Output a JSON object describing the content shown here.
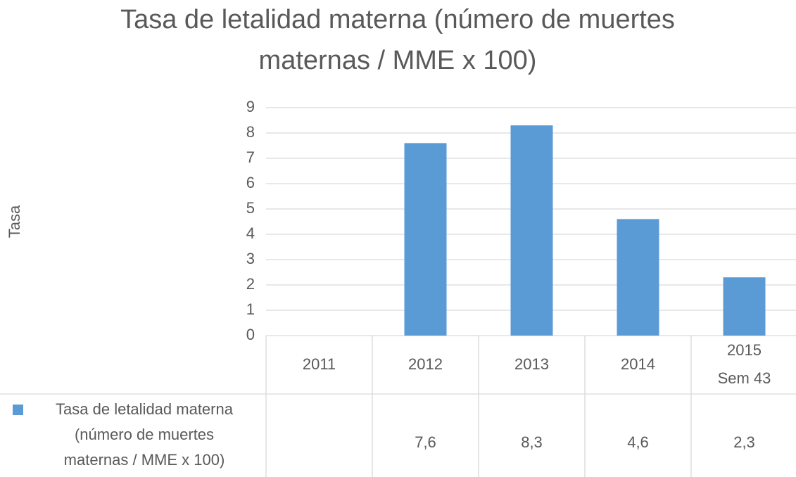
{
  "chart_data": {
    "type": "bar",
    "title": "Tasa de letalidad materna (número de muertes maternas / MME x 100)",
    "y_label": "Tasa",
    "categories": [
      "2011",
      "2012",
      "2013",
      "2014",
      "2015 Sem 43"
    ],
    "series": [
      {
        "name": "Tasa de letalidad materna (número de muertes maternas / MME x 100)",
        "color": "#5b9bd5",
        "values": [
          null,
          7.6,
          8.3,
          4.6,
          2.3
        ],
        "value_labels": [
          null,
          "7,6",
          "8,3",
          "4,6",
          "2,3"
        ]
      }
    ],
    "ylim": [
      0,
      9
    ],
    "yticks": [
      0,
      1,
      2,
      3,
      4,
      5,
      6,
      7,
      8,
      9
    ],
    "grid": true,
    "legend": "bottom-left"
  }
}
